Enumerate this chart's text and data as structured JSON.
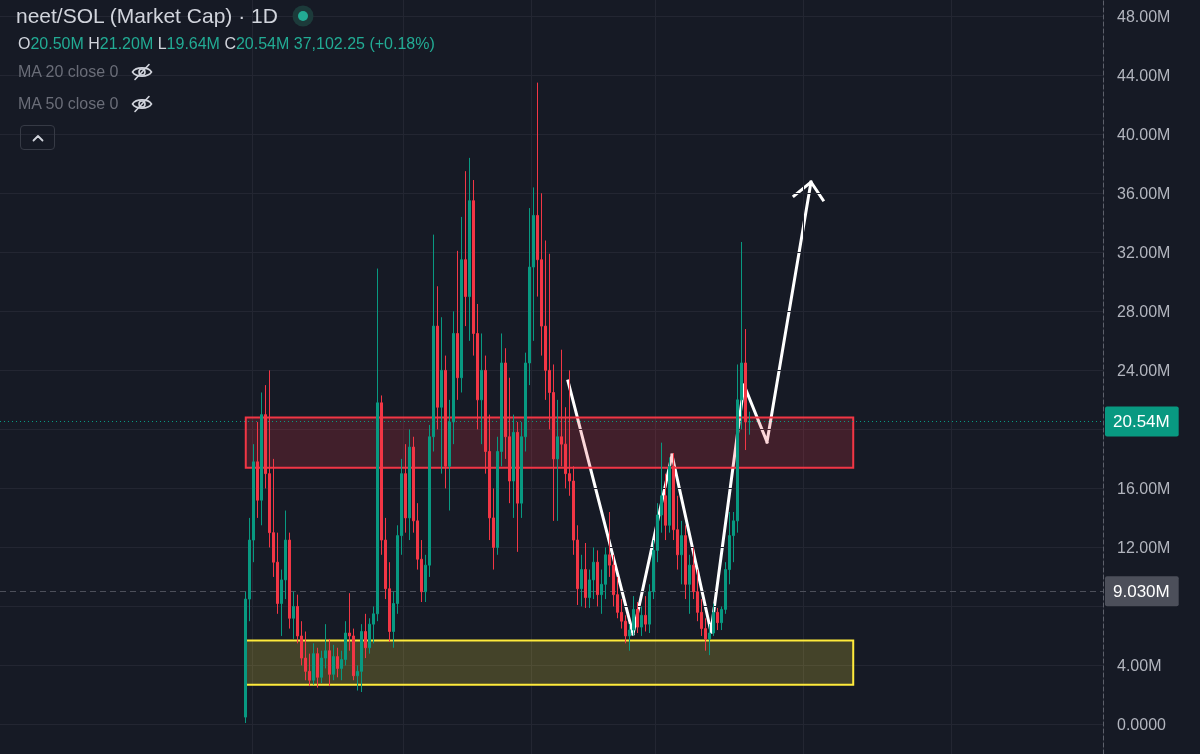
{
  "chart_data": {
    "type": "candlestick",
    "title": "neet/SOL (Market Cap) · 1D",
    "annotations": [
      "O20.50M H21.20M L19.64M C20.54M 37,102.25 (+0.18%)",
      "MA 20 close 0",
      "MA 50 close 0"
    ],
    "categories": [
      null,
      null,
      null,
      null,
      null,
      null,
      null,
      null,
      null,
      null,
      null,
      null,
      null,
      null,
      null,
      null,
      null,
      null,
      null,
      null,
      null,
      null,
      null,
      null,
      null,
      null,
      null,
      null,
      null,
      null,
      null,
      null,
      null,
      null,
      null,
      null,
      null,
      null,
      null,
      null,
      null,
      null,
      null,
      null,
      null,
      null,
      null,
      null,
      null,
      null,
      null,
      null,
      null,
      null,
      null,
      null,
      null,
      null,
      null,
      null,
      null,
      null,
      null,
      null,
      null,
      null,
      null,
      null,
      null,
      null,
      null,
      null,
      null,
      null,
      null,
      null,
      null,
      null,
      null,
      null,
      null,
      null,
      null,
      null,
      null,
      null,
      null,
      null,
      null,
      null,
      null,
      null,
      null,
      null,
      null,
      null,
      null,
      null,
      null,
      null,
      null,
      null,
      null,
      null,
      null,
      null,
      null,
      null,
      null,
      null,
      null,
      null,
      null,
      null,
      null,
      null,
      null,
      null,
      null,
      null,
      null,
      null,
      null,
      null,
      null,
      null,
      null,
      null,
      null,
      null,
      null,
      null,
      null,
      null,
      null,
      null,
      null,
      null,
      null,
      null,
      null,
      null,
      null,
      null,
      null,
      null,
      null,
      null,
      null,
      null,
      null,
      null,
      null,
      null,
      null,
      null,
      null,
      null,
      null,
      null,
      null,
      null,
      null,
      null,
      null,
      null,
      null,
      null,
      null,
      null,
      null,
      null,
      null,
      null,
      null,
      null,
      null,
      null,
      null,
      null,
      null,
      null,
      null,
      null,
      null,
      null,
      null,
      null,
      null,
      null,
      null,
      null,
      null,
      null,
      null,
      null,
      null,
      null,
      null,
      null,
      null,
      null,
      null,
      null,
      null,
      null,
      null,
      null,
      null,
      null,
      null,
      null,
      null,
      null,
      null,
      null,
      null,
      null,
      null,
      null,
      null,
      null,
      null,
      null,
      null,
      null,
      null,
      null,
      null,
      null,
      null,
      null,
      null,
      null,
      null,
      null,
      null,
      null,
      null,
      null,
      null,
      null,
      null,
      null,
      null,
      null,
      null,
      null,
      null,
      null,
      null,
      null,
      null,
      null,
      null,
      null,
      null,
      null,
      null,
      null,
      null,
      null,
      null,
      null,
      null,
      null,
      null,
      null,
      null,
      null,
      null,
      null,
      null,
      null,
      null,
      null
    ],
    "ohlc": [
      null,
      null,
      null,
      null,
      null,
      null,
      null,
      null,
      null,
      null,
      null,
      null,
      null,
      null,
      null,
      null,
      null,
      null,
      null,
      null,
      null,
      null,
      null,
      null,
      null,
      null,
      null,
      null,
      null,
      null,
      null,
      null,
      null,
      null,
      null,
      null,
      null,
      null,
      null,
      null,
      null,
      null,
      null,
      null,
      null,
      null,
      null,
      null,
      null,
      null,
      null,
      null,
      null,
      null,
      null,
      null,
      null,
      null,
      null,
      null,
      null,
      [
        0.5,
        9,
        0.1,
        8.5
      ],
      [
        8.5,
        14,
        7,
        12.5
      ],
      [
        12.5,
        19,
        11,
        17.8
      ],
      [
        17.8,
        20.5,
        14,
        15.2
      ],
      [
        15.2,
        22.5,
        13.5,
        21
      ],
      [
        21,
        23,
        16,
        17
      ],
      [
        17,
        24,
        12,
        13
      ],
      [
        13,
        18,
        10,
        11
      ],
      [
        11,
        13,
        7.5,
        8.2
      ],
      [
        8.2,
        10.5,
        6,
        9.8
      ],
      [
        9.8,
        14.5,
        8.5,
        12.5
      ],
      [
        12.5,
        13,
        6.5,
        7.2
      ],
      [
        7.2,
        9,
        5.8,
        8
      ],
      [
        8,
        8.8,
        5.5,
        6
      ],
      [
        6,
        7,
        4,
        4.5
      ],
      [
        4.5,
        6.3,
        3,
        3.6
      ],
      [
        3.6,
        4.8,
        2.6,
        3
      ],
      [
        3,
        5.5,
        2.7,
        4.8
      ],
      [
        4.8,
        5.2,
        2.5,
        3.2
      ],
      [
        3.2,
        5,
        2.8,
        4.5
      ],
      [
        4.5,
        6.8,
        3.8,
        5
      ],
      [
        5,
        5.8,
        2.6,
        3.4
      ],
      [
        3.4,
        5.4,
        3,
        4.6
      ],
      [
        4.6,
        5.2,
        3.2,
        3.8
      ],
      [
        3.8,
        5,
        3,
        4.4
      ],
      [
        4.4,
        7,
        4,
        6.2
      ],
      [
        6.2,
        8.9,
        5,
        6
      ],
      [
        6,
        6.5,
        3,
        3.3
      ],
      [
        3.3,
        4,
        2.3,
        3.6
      ],
      [
        3.6,
        6.8,
        2.2,
        6.3
      ],
      [
        6.3,
        7.5,
        4.5,
        5.2
      ],
      [
        5.2,
        7.2,
        4.8,
        6.8
      ],
      [
        6.8,
        8,
        5.5,
        7.5
      ],
      [
        7.5,
        30.9,
        7,
        21.8
      ],
      [
        21.8,
        22.3,
        11.5,
        12.5
      ],
      [
        12.5,
        14,
        8.5,
        9.2
      ],
      [
        9.2,
        11,
        5.6,
        6.3
      ],
      [
        6.3,
        9,
        5.2,
        8.2
      ],
      [
        8.2,
        13.5,
        7.5,
        12.8
      ],
      [
        12.8,
        18,
        11.5,
        17
      ],
      [
        17,
        19,
        13,
        14
      ],
      [
        14,
        20,
        12.5,
        18.8
      ],
      [
        18.8,
        19.5,
        13,
        13.8
      ],
      [
        13.8,
        15,
        10.5,
        11.2
      ],
      [
        11.2,
        12.5,
        8.3,
        9
      ],
      [
        9,
        11.5,
        8.3,
        10.8
      ],
      [
        10.8,
        20.3,
        10,
        19.5
      ],
      [
        19.5,
        33.2,
        18.5,
        27
      ],
      [
        27,
        29.7,
        20,
        21.5
      ],
      [
        21.5,
        27.6,
        17,
        24
      ],
      [
        24,
        25,
        16,
        17.5
      ],
      [
        17.5,
        22,
        14.5,
        20.5
      ],
      [
        20.5,
        28,
        19,
        26.5
      ],
      [
        26.5,
        32.1,
        22,
        23.5
      ],
      [
        23.5,
        34.4,
        22.5,
        31.5
      ],
      [
        31.5,
        37.5,
        27,
        29
      ],
      [
        29,
        38.4,
        26,
        35.5
      ],
      [
        35.5,
        36.9,
        25,
        26.5
      ],
      [
        26.5,
        28.5,
        20,
        22
      ],
      [
        22,
        26.5,
        19,
        24
      ],
      [
        24,
        25,
        17,
        18.5
      ],
      [
        18.5,
        21,
        12.5,
        14
      ],
      [
        14,
        16,
        10.5,
        12
      ],
      [
        12,
        19.5,
        11.5,
        18.5
      ],
      [
        18.5,
        26.5,
        17.5,
        24.5
      ],
      [
        24.5,
        25.5,
        18,
        19.5
      ],
      [
        19.5,
        23.5,
        15,
        16.5
      ],
      [
        16.5,
        21,
        14,
        19.8
      ],
      [
        19.8,
        20.5,
        11.7,
        15
      ],
      [
        15,
        20.5,
        14,
        19.5
      ],
      [
        19.5,
        25.2,
        18.5,
        24.5
      ],
      [
        24.5,
        35,
        23,
        31
      ],
      [
        31,
        36.4,
        26,
        34.5
      ],
      [
        34.5,
        43.5,
        29,
        31.5
      ],
      [
        31.5,
        36,
        25,
        27
      ],
      [
        27,
        32.8,
        22,
        24
      ],
      [
        24,
        31.9,
        20,
        22.5
      ],
      [
        22.5,
        24.4,
        13.8,
        18
      ],
      [
        18,
        22,
        13.8,
        19.5
      ],
      [
        19.5,
        25.4,
        17.5,
        19
      ],
      [
        19,
        21.5,
        16,
        17
      ],
      [
        17,
        24,
        15.5,
        16.5
      ],
      [
        16.5,
        17.5,
        11.5,
        12.5
      ],
      [
        12.5,
        13.5,
        8.1,
        9.2
      ],
      [
        9.2,
        11.5,
        8,
        10.5
      ],
      [
        10.5,
        12.3,
        7.9,
        8.6
      ],
      [
        8.6,
        10.5,
        7.9,
        9.8
      ],
      [
        9.8,
        12,
        8.5,
        11
      ],
      [
        11,
        11.8,
        8,
        8.8
      ],
      [
        8.8,
        10.5,
        7.5,
        9.5
      ],
      [
        9.5,
        12,
        8.5,
        11.5
      ],
      [
        11.5,
        14.4,
        10,
        10.8
      ],
      [
        10.8,
        11.5,
        8,
        8.8
      ],
      [
        8.8,
        10,
        7.2,
        7.6
      ],
      [
        7.6,
        8.5,
        6.5,
        7
      ],
      [
        7,
        7.4,
        5.5,
        6
      ],
      [
        6,
        6.8,
        5,
        6.4
      ],
      [
        6.4,
        8.7,
        6,
        7.8
      ],
      [
        7.8,
        8.3,
        6.2,
        6.6
      ],
      [
        6.6,
        8,
        6,
        7.4
      ],
      [
        7.4,
        8.7,
        6.3,
        6.8
      ],
      [
        6.8,
        9.5,
        6.2,
        9
      ],
      [
        9,
        12.5,
        8.5,
        11.8
      ],
      [
        11.8,
        15,
        11,
        14.2
      ],
      [
        14.2,
        19.1,
        13,
        15.5
      ],
      [
        15.5,
        17,
        12.5,
        13.5
      ],
      [
        13.5,
        18.1,
        13,
        17.5
      ],
      [
        17.5,
        18.4,
        12.5,
        13.2
      ],
      [
        13.2,
        15.5,
        10.5,
        11.5
      ],
      [
        11.5,
        13.8,
        9.5,
        12.8
      ],
      [
        12.8,
        13.5,
        8.5,
        9.5
      ],
      [
        9.5,
        11.5,
        7.5,
        10.8
      ],
      [
        10.8,
        12,
        8.5,
        9
      ],
      [
        9,
        10.5,
        7,
        7.6
      ],
      [
        7.6,
        8.5,
        6,
        6.5
      ],
      [
        6.5,
        7.2,
        5,
        5.8
      ],
      [
        5.8,
        6.8,
        4.7,
        6.2
      ],
      [
        6.2,
        8.2,
        6,
        7.6
      ],
      [
        7.6,
        7.9,
        6.4,
        6.9
      ],
      [
        6.9,
        8,
        6.4,
        7.8
      ],
      [
        7.8,
        11,
        7.5,
        10.5
      ],
      [
        10.5,
        14.4,
        9.5,
        12.8
      ],
      [
        12.8,
        14.4,
        11,
        13.8
      ],
      [
        13.8,
        24.4,
        13,
        22
      ],
      [
        22,
        32.7,
        20,
        24.5
      ],
      [
        24.5,
        26.8,
        18.6,
        20.5
      ],
      [
        20.5,
        21.2,
        19.64,
        20.54
      ],
      null,
      null,
      null,
      null,
      null,
      null,
      null,
      null,
      null,
      null,
      null,
      null,
      null,
      null,
      null,
      null,
      null,
      null,
      null,
      null,
      null,
      null,
      null,
      null,
      null,
      null,
      null,
      null,
      null,
      null,
      null,
      null,
      null,
      null,
      null,
      null,
      null,
      null,
      null,
      null,
      null,
      null,
      null,
      null,
      null,
      null,
      null,
      null,
      null,
      null,
      null,
      null,
      null,
      null,
      null,
      null,
      null,
      null,
      null,
      null,
      null,
      null,
      null,
      null,
      null,
      null,
      null,
      null,
      null,
      null,
      null,
      null,
      null,
      null,
      null,
      null,
      null,
      null,
      null,
      null,
      null,
      null,
      null,
      null,
      null,
      null,
      null,
      null
    ],
    "colors": [
      null,
      null,
      null,
      null,
      null,
      null,
      null,
      null,
      null,
      null,
      null,
      null,
      null,
      null,
      null,
      null,
      null,
      null,
      null,
      null,
      null,
      null,
      null,
      null,
      null,
      null,
      null,
      null,
      null,
      null,
      null,
      null,
      null,
      null,
      null,
      null,
      null,
      null,
      null,
      null,
      null,
      null,
      null,
      null,
      null,
      null,
      null,
      null,
      null,
      null,
      null,
      null,
      null,
      null,
      null,
      null,
      null,
      null,
      null,
      null,
      null,
      "#089981",
      "#089981",
      "#089981",
      "#f23645",
      "#089981",
      "#f23645",
      "#f23645",
      "#f23645",
      "#f23645",
      "#089981",
      "#089981",
      "#f23645",
      "#089981",
      "#f23645",
      "#f23645",
      "#f23645",
      "#f23645",
      "#089981",
      "#f23645",
      "#089981",
      "#089981",
      "#f23645",
      "#089981",
      "#f23645",
      "#089981",
      "#089981",
      "#f23645",
      "#f23645",
      "#089981",
      "#089981",
      "#f23645",
      "#089981",
      "#089981",
      "#089981",
      "#f23645",
      "#f23645",
      "#f23645",
      "#089981",
      "#089981",
      "#089981",
      "#f23645",
      "#089981",
      "#f23645",
      "#f23645",
      "#f23645",
      "#089981",
      "#089981",
      "#089981",
      "#f23645",
      "#089981",
      "#f23645",
      "#089981",
      "#089981",
      "#f23645",
      "#089981",
      "#f23645",
      "#089981",
      "#f23645",
      "#f23645",
      "#089981",
      "#f23645",
      "#f23645",
      "#f23645",
      "#089981",
      "#089981",
      "#f23645",
      "#f23645",
      "#089981",
      "#f23645",
      "#089981",
      "#089981",
      "#089981",
      "#089981",
      "#f23645",
      "#f23645",
      "#f23645",
      "#f23645",
      "#f23645",
      "#089981",
      "#f23645",
      "#f23645",
      "#f23645",
      "#f23645",
      "#f23645",
      "#089981",
      "#f23645",
      "#089981",
      "#089981",
      "#f23645",
      "#089981",
      "#089981",
      "#f23645",
      "#f23645",
      "#f23645",
      "#f23645",
      "#f23645",
      "#089981",
      "#089981",
      "#f23645",
      "#089981",
      "#f23645",
      "#089981",
      "#089981",
      "#089981",
      "#089981",
      "#f23645",
      "#089981",
      "#f23645",
      "#f23645",
      "#089981",
      "#f23645",
      "#089981",
      "#f23645",
      "#f23645",
      "#f23645",
      "#f23645",
      "#089981",
      "#089981",
      "#f23645",
      "#089981",
      "#089981",
      "#089981",
      "#089981",
      "#089981",
      "#089981",
      "#f23645",
      "#089981",
      null,
      null,
      null,
      null,
      null,
      null,
      null,
      null,
      null,
      null,
      null,
      null,
      null,
      null,
      null,
      null,
      null,
      null,
      null,
      null,
      null,
      null,
      null,
      null,
      null,
      null,
      null,
      null,
      null,
      null,
      null,
      null,
      null,
      null,
      null,
      null,
      null,
      null,
      null,
      null,
      null,
      null,
      null,
      null,
      null,
      null,
      null,
      null,
      null,
      null,
      null,
      null,
      null,
      null,
      null,
      null,
      null,
      null,
      null,
      null,
      null,
      null,
      null,
      null,
      null,
      null,
      null,
      null,
      null,
      null,
      null,
      null,
      null,
      null,
      null,
      null,
      null,
      null,
      null,
      null,
      null,
      null,
      null,
      null,
      null,
      null,
      null,
      null
    ],
    "ylim": [
      -2,
      49.1
    ],
    "yticks": [
      {
        "value": 0,
        "label": "0.0000"
      },
      {
        "value": 4,
        "label": "4.00M"
      },
      {
        "value": 8,
        "label": null
      },
      {
        "value": 12,
        "label": "12.00M"
      },
      {
        "value": 16,
        "label": "16.00M"
      },
      {
        "value": 20,
        "label": null
      },
      {
        "value": 24,
        "label": "24.00M"
      },
      {
        "value": 28,
        "label": "28.00M"
      },
      {
        "value": 32,
        "label": "32.00M"
      },
      {
        "value": 36,
        "label": "36.00M"
      },
      {
        "value": 40,
        "label": "40.00M"
      },
      {
        "value": 44,
        "label": "44.00M"
      },
      {
        "value": 48,
        "label": "48.00M"
      }
    ],
    "tick_labels": "y",
    "grid": true,
    "ref_lines": [
      {
        "axis": "y",
        "value": 20.54,
        "label": "20.54M",
        "color": "#089981",
        "line_style": "dotted"
      },
      {
        "axis": "y",
        "value": 9.03,
        "label": "9.030M",
        "color": "#4c4f5a",
        "line_style": "dashed"
      }
    ],
    "bands": [
      {
        "axis": "y",
        "from": 17.4,
        "to": 20.8,
        "color": "#f23645"
      },
      {
        "axis": "y",
        "from": 2.7,
        "to": 5.7,
        "color": "#ffeb3b"
      }
    ]
  }
}
